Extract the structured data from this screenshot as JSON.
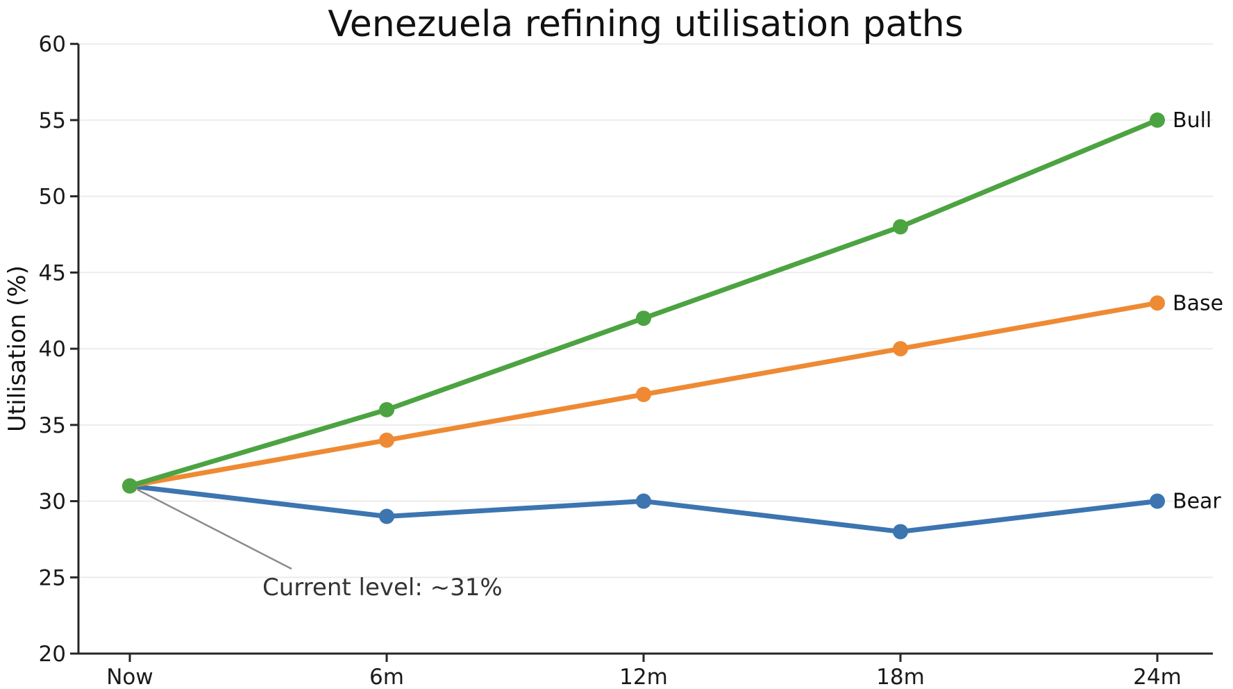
{
  "title": "Venezuela refining utilisation paths",
  "chart_data": {
    "type": "line",
    "title": "Venezuela refining utilisation paths",
    "xlabel": "",
    "ylabel": "Utilisation (%)",
    "categories": [
      "Now",
      "6m",
      "12m",
      "18m",
      "24m"
    ],
    "series": [
      {
        "name": "Bull",
        "values": [
          31,
          36,
          42,
          48,
          55
        ],
        "color": "#4CA341"
      },
      {
        "name": "Base",
        "values": [
          31,
          34,
          37,
          40,
          43
        ],
        "color": "#EE8A34"
      },
      {
        "name": "Bear",
        "values": [
          31,
          29,
          30,
          28,
          30
        ],
        "color": "#3C75B0"
      }
    ],
    "ylim": [
      20,
      60
    ],
    "yticks": [
      20,
      25,
      30,
      35,
      40,
      45,
      50,
      55,
      60
    ],
    "grid": true,
    "grid_direction": "horizontal",
    "legend_position": "line-end-labels",
    "annotation": {
      "text": "Current level: ~31%",
      "target_category": "Now",
      "target_value": 31
    }
  },
  "colors": {
    "bull_green": "#4CA341",
    "base_orange": "#EE8A34",
    "bear_blue": "#3C75B0",
    "gridline": "#ececec",
    "axis": "#262626",
    "annotation_line": "#8a8a8a",
    "text": "#111111"
  }
}
